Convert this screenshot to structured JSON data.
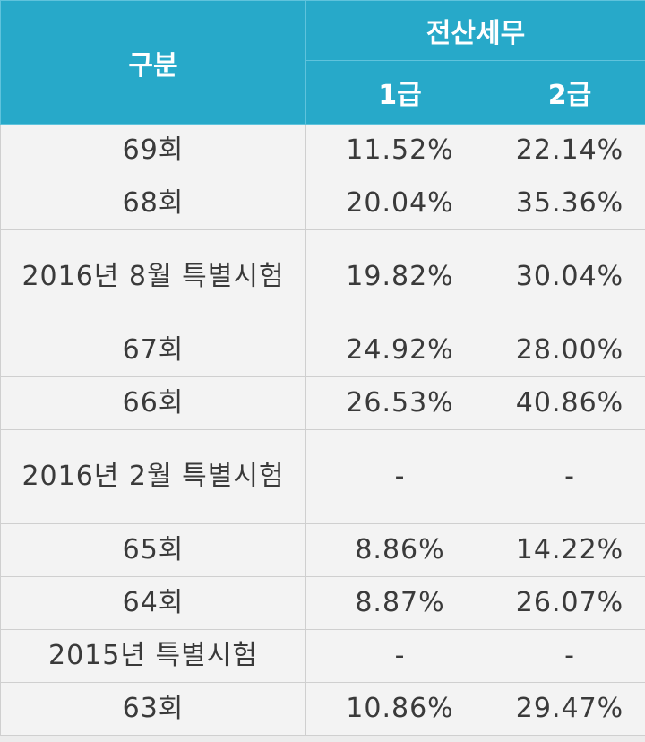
{
  "header": {
    "category_label": "구분",
    "group_label": "전산세무",
    "col1_label": "1급",
    "col2_label": "2급"
  },
  "rows": [
    {
      "label": "69회",
      "grade1": "11.52%",
      "grade2": "22.14%"
    },
    {
      "label": "68회",
      "grade1": "20.04%",
      "grade2": "35.36%"
    },
    {
      "label": "2016년 8월 특별시험",
      "grade1": "19.82%",
      "grade2": "30.04%"
    },
    {
      "label": "67회",
      "grade1": "24.92%",
      "grade2": "28.00%"
    },
    {
      "label": "66회",
      "grade1": "26.53%",
      "grade2": "40.86%"
    },
    {
      "label": "2016년 2월 특별시험",
      "grade1": "-",
      "grade2": "-"
    },
    {
      "label": "65회",
      "grade1": "8.86%",
      "grade2": "14.22%"
    },
    {
      "label": "64회",
      "grade1": "8.87%",
      "grade2": "26.07%"
    },
    {
      "label": "2015년 특별시험",
      "grade1": "-",
      "grade2": "-"
    },
    {
      "label": "63회",
      "grade1": "10.86%",
      "grade2": "29.47%"
    }
  ]
}
